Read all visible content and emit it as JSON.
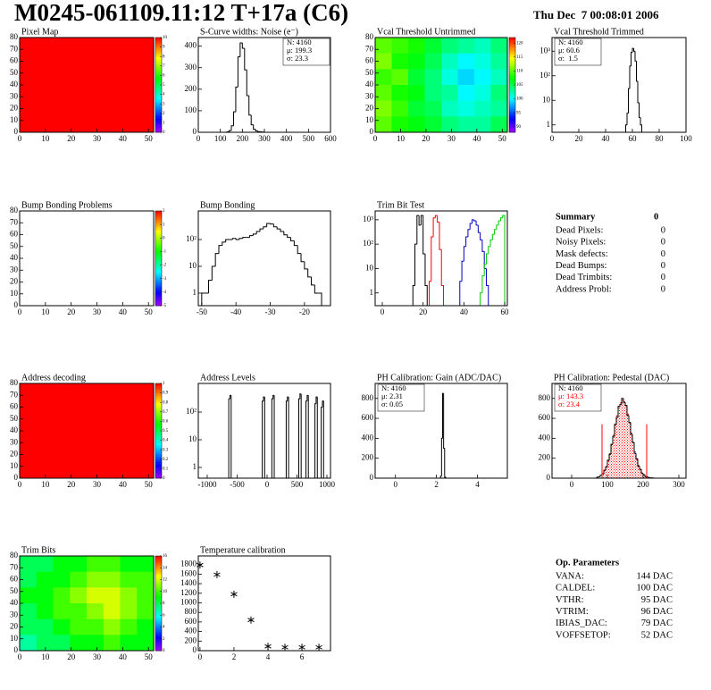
{
  "header": {
    "title": "M0245-061109.11:12 T+17a (C6)",
    "date": "Thu Dec  7 00:08:01 2006"
  },
  "chart_data": [
    {
      "type": "heatmap",
      "title": "Pixel Map",
      "xlim": [
        0,
        52
      ],
      "xticks": [
        0,
        10,
        20,
        30,
        40,
        50
      ],
      "ylim": [
        0,
        80
      ],
      "yticks": [
        0,
        10,
        20,
        30,
        40,
        50,
        60,
        70,
        80
      ],
      "zlim": [
        0,
        10
      ],
      "zticks": [
        0,
        1,
        2,
        3,
        4,
        5,
        6,
        7,
        8,
        9,
        10
      ],
      "z": [
        [
          10
        ]
      ]
    },
    {
      "type": "histogram",
      "title": "S-Curve widths: Noise (e⁻)",
      "xlim": [
        0,
        600
      ],
      "xticks": [
        0,
        100,
        200,
        300,
        400,
        500,
        600
      ],
      "ylim": [
        0,
        440
      ],
      "yticks": [
        0,
        100,
        200,
        300,
        400
      ],
      "log": false,
      "stats": [
        "N: 4160",
        "μ: 199.3",
        "σ: 23.3"
      ],
      "stats_corner": "right",
      "series": [
        {
          "color": "#000000",
          "bins": [
            130,
            140,
            150,
            160,
            170,
            180,
            190,
            200,
            210,
            220,
            230,
            240,
            250,
            260,
            270,
            280,
            290,
            300
          ],
          "values": [
            2,
            8,
            30,
            95,
            210,
            350,
            415,
            390,
            290,
            170,
            80,
            35,
            14,
            6,
            3,
            2,
            1
          ]
        }
      ]
    },
    {
      "type": "heatmap",
      "title": "Vcal Threshold Untrimmed",
      "xlim": [
        0,
        52
      ],
      "xticks": [
        0,
        10,
        20,
        30,
        40,
        50
      ],
      "ylim": [
        0,
        80
      ],
      "yticks": [
        0,
        10,
        20,
        30,
        40,
        50,
        60,
        70,
        80
      ],
      "zlim": [
        88,
        122
      ],
      "zticks": [
        90,
        95,
        100,
        105,
        110,
        115,
        120
      ],
      "z": [
        [
          110,
          109,
          108,
          106,
          104,
          103,
          102,
          104
        ],
        [
          111,
          108,
          107,
          105,
          102,
          100,
          101,
          103
        ],
        [
          109,
          110,
          106,
          104,
          101,
          99,
          100,
          102
        ],
        [
          110,
          108,
          107,
          104,
          103,
          100,
          101,
          104
        ],
        [
          111,
          109,
          106,
          105,
          102,
          101,
          102,
          103
        ],
        [
          110,
          108,
          107,
          106,
          104,
          103,
          103,
          105
        ]
      ]
    },
    {
      "type": "histogram",
      "title": "Vcal Threshold Trimmed",
      "xlim": [
        0,
        100
      ],
      "xticks": [
        0,
        20,
        40,
        60,
        80,
        100
      ],
      "ylim": [
        0.5,
        3600
      ],
      "yticks": [
        1,
        10,
        {
          "value": 100,
          "label": "10²"
        },
        {
          "value": 1000,
          "label": "10³"
        }
      ],
      "log": true,
      "stats": [
        "N: 4160",
        "μ: 60.6",
        "σ:  1.5"
      ],
      "stats_corner": "left",
      "series": [
        {
          "color": "#000000",
          "bins": [
            55,
            56,
            57,
            58,
            59,
            60,
            61,
            62,
            63,
            64,
            65,
            66,
            67
          ],
          "values": [
            1,
            3,
            30,
            250,
            900,
            1300,
            1000,
            400,
            60,
            8,
            2,
            1
          ]
        }
      ]
    },
    {
      "type": "heatmap",
      "title": "Bump Bonding Problems",
      "xlim": [
        0,
        52
      ],
      "xticks": [
        0,
        10,
        20,
        30,
        40,
        50
      ],
      "ylim": [
        0,
        80
      ],
      "yticks": [
        0,
        10,
        20,
        30,
        40,
        50,
        60,
        70,
        80
      ],
      "zlim": [
        -5,
        2
      ],
      "zticks": [
        -5,
        -4,
        -3,
        -2,
        -1,
        0,
        1,
        2
      ],
      "z": []
    },
    {
      "type": "histogram",
      "title": "Bump Bonding",
      "xlim": [
        -51,
        -12.4
      ],
      "xticks": [
        -50,
        -40,
        -30,
        -20
      ],
      "ylim": [
        0.34,
        1170
      ],
      "yticks": [
        1,
        10,
        {
          "value": 100,
          "label": "10²"
        }
      ],
      "log": true,
      "series": [
        {
          "color": "#000000",
          "bins": [
            -50,
            -49,
            -48,
            -47,
            -46,
            -45,
            -44,
            -43,
            -42,
            -41,
            -40,
            -39,
            -38,
            -37,
            -36,
            -35,
            -34,
            -33,
            -32,
            -31,
            -30,
            -29,
            -28,
            -27,
            -26,
            -25,
            -24,
            -23,
            -22,
            -21,
            -20,
            -19,
            -18,
            -17,
            -16,
            -15
          ],
          "values": [
            1,
            1,
            3,
            10,
            30,
            60,
            80,
            100,
            100,
            110,
            100,
            110,
            120,
            120,
            140,
            160,
            200,
            250,
            300,
            400,
            380,
            300,
            250,
            200,
            150,
            120,
            90,
            60,
            30,
            15,
            8,
            4,
            2,
            1,
            1
          ]
        }
      ]
    },
    {
      "type": "histogram",
      "title": "Trim Bit Test",
      "xlim": [
        -3.5,
        61.3
      ],
      "xticks": [
        0,
        20,
        40,
        60
      ],
      "ylim": [
        0.3,
        2300
      ],
      "yticks": [
        1,
        10,
        {
          "value": 100,
          "label": "10²"
        },
        {
          "value": 1000,
          "label": "10³"
        }
      ],
      "log": true,
      "series": [
        {
          "color": "#000000",
          "bins": [
            15,
            16,
            17,
            18,
            19,
            20,
            21,
            22
          ],
          "values": [
            2,
            100,
            1500,
            600,
            1500,
            40,
            2
          ]
        },
        {
          "color": "#ff0000",
          "bins": [
            23,
            24,
            25,
            26,
            27,
            28,
            29,
            30
          ],
          "values": [
            3,
            200,
            1200,
            1500,
            800,
            60,
            2
          ]
        },
        {
          "color": "#0000cc",
          "bins": [
            38,
            39,
            40,
            41,
            42,
            43,
            44,
            45,
            46,
            47,
            48,
            49,
            50,
            51,
            52
          ],
          "values": [
            3,
            20,
            80,
            200,
            400,
            700,
            1000,
            900,
            600,
            300,
            150,
            50,
            10,
            2
          ]
        },
        {
          "color": "#00cc00",
          "bins": [
            48,
            49,
            50,
            51,
            52,
            53,
            54,
            55,
            56,
            57,
            58,
            59,
            60
          ],
          "values": [
            1,
            5,
            15,
            40,
            80,
            150,
            250,
            400,
            600,
            900,
            1200,
            1500
          ]
        }
      ]
    },
    {
      "type": "heatmap",
      "title": "Address decoding",
      "xlim": [
        0,
        52
      ],
      "xticks": [
        0,
        10,
        20,
        30,
        40,
        50
      ],
      "ylim": [
        0,
        80
      ],
      "yticks": [
        0,
        10,
        20,
        30,
        40,
        50,
        60,
        70,
        80
      ],
      "zlim": [
        0,
        1
      ],
      "zticks": [
        0,
        0.1,
        0.2,
        0.3,
        0.4,
        0.5,
        0.6,
        0.7,
        0.8,
        0.9,
        1
      ],
      "z": [
        [
          1
        ]
      ]
    },
    {
      "type": "histogram",
      "title": "Address Levels",
      "xlim": [
        -1149,
        1060
      ],
      "xticks": [
        -1000,
        -500,
        0,
        500,
        1000
      ],
      "ylim": [
        0.41,
        1080
      ],
      "yticks": [
        1,
        10,
        {
          "value": 100,
          "label": "10²"
        }
      ],
      "log": true,
      "series": [
        {
          "color": "#000000",
          "bins": [
            -640,
            -620,
            -600,
            -80,
            -60,
            -40,
            80,
            100,
            120,
            320,
            340,
            360,
            530,
            550,
            570,
            650,
            670,
            690,
            800,
            820,
            840,
            905,
            925,
            945
          ],
          "values": [
            300,
            400,
            0,
            250,
            350,
            0,
            300,
            400,
            0,
            250,
            350,
            0,
            300,
            450,
            0,
            250,
            400,
            0,
            200,
            350,
            0,
            150,
            250
          ]
        }
      ]
    },
    {
      "type": "histogram",
      "title": "PH Calibration: Gain (ADC/DAC)",
      "xlim": [
        -0.99,
        5.46
      ],
      "xticks": [
        0,
        2,
        4
      ],
      "ylim": [
        0,
        950
      ],
      "yticks": [
        0,
        200,
        400,
        600,
        800
      ],
      "log": false,
      "stats": [
        "N: 4160",
        "μ: 2.31",
        "σ: 0.05"
      ],
      "stats_corner": "left",
      "series": [
        {
          "color": "#000000",
          "bins": [
            2.2,
            2.25,
            2.3,
            2.35,
            2.4,
            2.45
          ],
          "values": [
            20,
            400,
            850,
            300,
            10
          ]
        }
      ]
    },
    {
      "type": "histogram",
      "title": "PH Calibration: Pedestal (DAC)",
      "xlim": [
        -55,
        320
      ],
      "xticks": [
        0,
        100,
        200,
        300
      ],
      "ylim": [
        0,
        950
      ],
      "yticks": [
        0,
        200,
        400,
        600,
        800
      ],
      "log": false,
      "stats": [
        "N: 4160",
        "μ: 143.3",
        "σ: 23.4"
      ],
      "stats_colors": [
        "#000000",
        "#ff0000",
        "#ff0000"
      ],
      "stats_corner": "left",
      "fit_range": [
        85,
        210
      ],
      "fit_color": "#ff0000",
      "series": [
        {
          "color": "#ff0000",
          "fill": "hatch",
          "bins": [
            85,
            90,
            95,
            100,
            105,
            110,
            115,
            120,
            125,
            130,
            135,
            140,
            145,
            150,
            155,
            160,
            165,
            170,
            175,
            180,
            185,
            190,
            195,
            200,
            205,
            210
          ],
          "values": [
            47,
            76,
            118,
            175,
            247,
            334,
            431,
            531,
            627,
            705,
            759,
            780,
            766,
            718,
            644,
            551,
            451,
            353,
            263,
            188,
            128,
            83,
            52,
            31,
            18
          ]
        },
        {
          "color": "#000000",
          "bins": [
            70,
            75,
            80,
            85,
            90,
            95,
            100,
            105,
            110,
            115,
            120,
            125,
            130,
            135,
            140,
            145,
            150,
            155,
            160,
            165,
            170,
            175,
            180,
            185,
            190,
            195,
            200,
            205,
            210,
            215,
            220,
            225,
            230
          ],
          "values": [
            10,
            13,
            30,
            44,
            80,
            112,
            180,
            240,
            340,
            420,
            540,
            610,
            720,
            740,
            800,
            760,
            730,
            630,
            560,
            440,
            360,
            250,
            195,
            120,
            90,
            48,
            35,
            15,
            12,
            4,
            3,
            2
          ]
        }
      ]
    },
    {
      "type": "heatmap",
      "title": "Trim Bits",
      "xlim": [
        0,
        52
      ],
      "xticks": [
        0,
        10,
        20,
        30,
        40,
        50
      ],
      "ylim": [
        0,
        80
      ],
      "yticks": [
        0,
        10,
        20,
        30,
        40,
        50,
        60,
        70,
        80
      ],
      "zlim": [
        0,
        16
      ],
      "zticks": [
        0,
        2,
        4,
        6,
        8,
        10,
        12,
        14,
        16
      ],
      "z": [
        [
          8,
          8,
          9,
          9,
          10,
          10,
          9,
          9
        ],
        [
          8,
          9,
          9,
          10,
          11,
          11,
          10,
          10
        ],
        [
          9,
          9,
          10,
          11,
          12,
          12,
          11,
          10
        ],
        [
          8,
          9,
          10,
          10,
          11,
          12,
          11,
          10
        ],
        [
          8,
          8,
          9,
          10,
          10,
          11,
          10,
          9
        ],
        [
          7,
          8,
          8,
          9,
          9,
          10,
          9,
          9
        ]
      ]
    },
    {
      "type": "scatter",
      "title": "Temperature calibration",
      "xlim": [
        -0.1,
        7.68
      ],
      "xticks": [
        0,
        2,
        4,
        6
      ],
      "ylim": [
        0,
        1980
      ],
      "yticks": [
        0,
        200,
        400,
        600,
        800,
        1000,
        1200,
        1400,
        1600,
        1800
      ],
      "log": false,
      "color": "#000000",
      "x": [
        0,
        1,
        2,
        3,
        4,
        5,
        6,
        7
      ],
      "values": [
        1790,
        1590,
        1180,
        640,
        90,
        70,
        70,
        70
      ]
    }
  ],
  "summary": {
    "title": "Summary",
    "total": "0",
    "rows": [
      {
        "label": "Dead Pixels:",
        "value": "0"
      },
      {
        "label": "Noisy Pixels:",
        "value": "0"
      },
      {
        "label": "Mask defects:",
        "value": "0"
      },
      {
        "label": "Dead Bumps:",
        "value": "0"
      },
      {
        "label": "Dead Trimbits:",
        "value": "0"
      },
      {
        "label": "Address Probl:",
        "value": "0"
      }
    ]
  },
  "parameters": {
    "title": "Op. Parameters",
    "rows": [
      {
        "label": "VANA:",
        "value": "144 DAC"
      },
      {
        "label": "CALDEL:",
        "value": "100 DAC"
      },
      {
        "label": "VTHR:",
        "value": "95 DAC"
      },
      {
        "label": "VTRIM:",
        "value": "96 DAC"
      },
      {
        "label": "IBIAS_DAC:",
        "value": "79 DAC"
      },
      {
        "label": "VOFFSETOP:",
        "value": "52 DAC"
      }
    ]
  }
}
